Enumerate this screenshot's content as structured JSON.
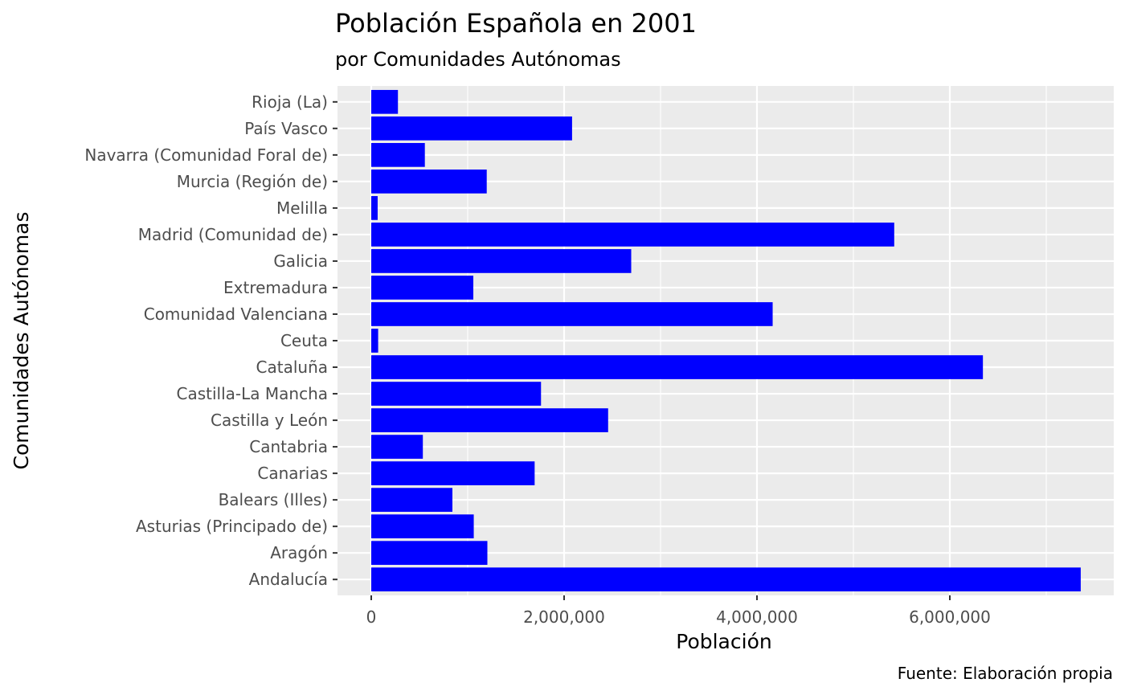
{
  "chart_data": {
    "type": "bar",
    "orientation": "horizontal",
    "title": "Población Española en 2001",
    "subtitle": "por Comunidades Autónomas",
    "xlabel": "Población",
    "ylabel": "Comunidades Autónomas",
    "caption": "Fuente: Elaboración propia",
    "xlim": [
      -350000,
      7700000
    ],
    "xticks": [
      0,
      2000000,
      4000000,
      6000000
    ],
    "xtick_labels": [
      "0",
      "2,000,000",
      "4,000,000",
      "6,000,000"
    ],
    "grid": true,
    "bar_color": "#0000ff",
    "panel_background": "#ebebeb",
    "grid_color": "#ffffff",
    "categories": [
      "Andalucía",
      "Aragón",
      "Asturias (Principado de)",
      "Balears (Illes)",
      "Canarias",
      "Cantabria",
      "Castilla y León",
      "Castilla-La Mancha",
      "Cataluña",
      "Ceuta",
      "Comunidad Valenciana",
      "Extremadura",
      "Galicia",
      "Madrid (Comunidad de)",
      "Melilla",
      "Murcia (Región de)",
      "Navarra (Comunidad Foral de)",
      "País Vasco",
      "Rioja (La)"
    ],
    "values": [
      7357558,
      1204215,
      1062998,
      841669,
      1694477,
      535131,
      2456474,
      1760516,
      6343110,
      71505,
      4162776,
      1058503,
      2695880,
      5423384,
      66411,
      1197646,
      555829,
      2082587,
      276702
    ]
  }
}
